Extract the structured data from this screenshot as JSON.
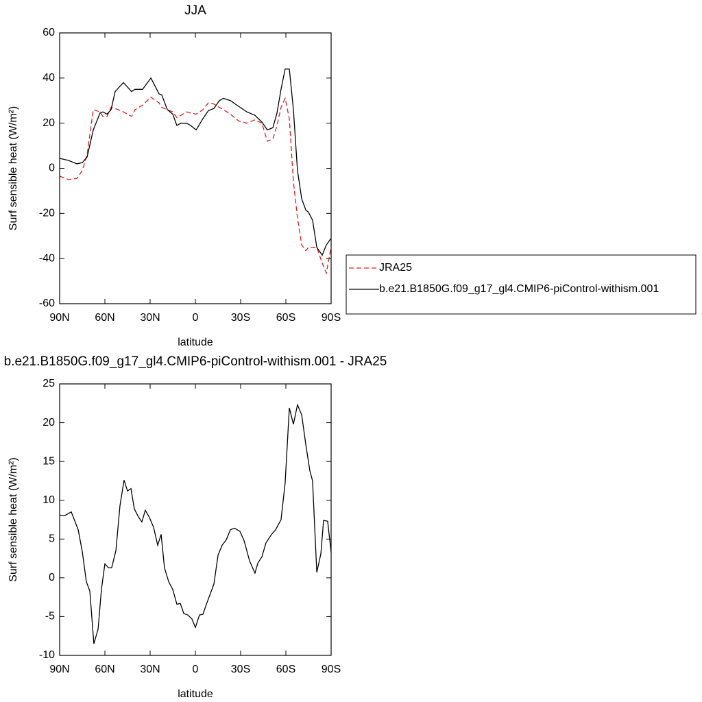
{
  "chart_data": [
    {
      "type": "line",
      "title": "JJA",
      "xlabel": "latitude",
      "ylabel": "Surf sensible heat (W/m²)",
      "x": [
        90,
        84.1,
        78.6,
        75,
        71.8,
        67.7,
        63.2,
        61.4,
        58.6,
        55.9,
        53.2,
        47.7,
        42.3,
        40,
        35,
        29.5,
        24.1,
        22.3,
        18.6,
        15,
        12.3,
        9.5,
        5.9,
        3.2,
        -0.5,
        -5,
        -8.6,
        -12.3,
        -15.9,
        -18.6,
        -23.2,
        -28.6,
        -34.1,
        -39.5,
        -44.1,
        -47.7,
        -51.4,
        -54.1,
        -56.8,
        -59.5,
        -62.3,
        -65,
        -67.7,
        -70.5,
        -73.2,
        -75,
        -77.7,
        -80.5,
        -84.1,
        -86.8,
        -90
      ],
      "series": [
        {
          "name": "JRA25",
          "color": "#e41a1c",
          "linestyle": "dashed",
          "values": [
            -3.5,
            -5,
            -4.5,
            -1,
            6,
            26,
            25,
            23,
            23,
            27,
            26.5,
            25,
            23,
            26,
            28,
            31.5,
            29,
            27,
            26,
            25,
            22.5,
            23.5,
            25,
            24.5,
            24,
            26,
            29,
            28.5,
            27,
            26,
            24,
            21,
            20,
            21.5,
            20,
            12,
            13,
            19,
            27,
            31,
            22,
            -6,
            -22,
            -34,
            -36.5,
            -35,
            -35,
            -35,
            -42,
            -46.5,
            -35
          ]
        },
        {
          "name": "b.e21.B1850G.f09_g17_gl4.CMIP6-piControl-withism.001",
          "color": "#000000",
          "linestyle": "solid",
          "values": [
            4.4,
            3.5,
            2,
            2.5,
            5,
            17,
            24.5,
            25,
            24,
            26,
            34,
            38,
            34,
            35,
            35,
            40,
            33,
            32.5,
            26,
            24,
            19,
            20,
            20,
            19,
            17,
            22,
            25.5,
            26.5,
            30,
            31,
            30,
            27.5,
            25,
            23.5,
            20.5,
            17,
            18,
            24.5,
            35,
            44,
            44,
            26,
            -1,
            -13.5,
            -18.5,
            -19.5,
            -23,
            -35,
            -38.5,
            -34,
            -31
          ]
        }
      ],
      "xlim": [
        90,
        -90
      ],
      "xticks": [
        {
          "value": 90,
          "label": "90N"
        },
        {
          "value": 60,
          "label": "60N"
        },
        {
          "value": 30,
          "label": "30N"
        },
        0,
        {
          "value": -30,
          "label": "30S"
        },
        {
          "value": -60,
          "label": "60S"
        },
        {
          "value": -90,
          "label": "90S"
        }
      ],
      "ylim": [
        -60,
        60
      ],
      "yticks": [
        -60,
        -40,
        -20,
        0,
        20,
        40,
        60
      ],
      "legend": "right"
    },
    {
      "type": "line",
      "title": "b.e21.B1850G.f09_g17_gl4.CMIP6-piControl-withism.001 - JRA25",
      "xlabel": "latitude",
      "ylabel": "Surf sensible heat (W/m²)",
      "x": [
        90,
        86.8,
        82.3,
        77.7,
        75,
        72.3,
        70,
        67.3,
        64.5,
        62.3,
        60,
        57.7,
        55.5,
        52.7,
        50,
        47.3,
        45,
        42.7,
        40.5,
        38.2,
        35.5,
        33.2,
        30.5,
        27.7,
        25,
        22.7,
        20.5,
        17.7,
        15,
        12.3,
        10,
        7.7,
        5,
        2.3,
        0,
        -2.7,
        -5,
        -7.7,
        -12.3,
        -15,
        -17.7,
        -20.5,
        -23.2,
        -25.9,
        -29.5,
        -32.3,
        -35.9,
        -39.5,
        -41.4,
        -44.1,
        -46.8,
        -50.5,
        -53.2,
        -56.8,
        -59.5,
        -62.3,
        -65,
        -67.7,
        -70.5,
        -73.2,
        -75.9,
        -77.7,
        -80.5,
        -83.2,
        -85,
        -87.7,
        -90
      ],
      "series": [
        {
          "color": "#000000",
          "linestyle": "solid",
          "values": [
            8.1,
            8,
            8.5,
            6.2,
            3.4,
            -0.5,
            -1.7,
            -8.5,
            -6.6,
            -1.5,
            1.8,
            1.3,
            1.3,
            3.5,
            9.3,
            12.6,
            11.2,
            11.5,
            8.9,
            8,
            7.2,
            8.7,
            7.8,
            6.5,
            4.2,
            5.6,
            1.3,
            -0.5,
            -1.5,
            -3.4,
            -3.3,
            -4.6,
            -4.8,
            -5.3,
            -6.4,
            -4.8,
            -4.7,
            -3.2,
            -0.8,
            2.9,
            4.2,
            4.9,
            6.2,
            6.4,
            6,
            4.8,
            2.2,
            0.6,
            1.9,
            2.7,
            4.5,
            5.6,
            6.2,
            7.5,
            12.2,
            21.9,
            19.8,
            22.3,
            21,
            17.2,
            13.8,
            12.5,
            0.7,
            3.1,
            7.4,
            7.3,
            3.3
          ]
        }
      ],
      "xlim": [
        90,
        -90
      ],
      "xticks": [
        {
          "value": 90,
          "label": "90N"
        },
        {
          "value": 60,
          "label": "60N"
        },
        {
          "value": 30,
          "label": "30N"
        },
        0,
        {
          "value": -30,
          "label": "30S"
        },
        {
          "value": -60,
          "label": "60S"
        },
        {
          "value": -90,
          "label": "90S"
        }
      ],
      "ylim": [
        -10,
        25
      ],
      "yticks": [
        -10,
        -5,
        0,
        5,
        10,
        15,
        20,
        25
      ]
    }
  ]
}
